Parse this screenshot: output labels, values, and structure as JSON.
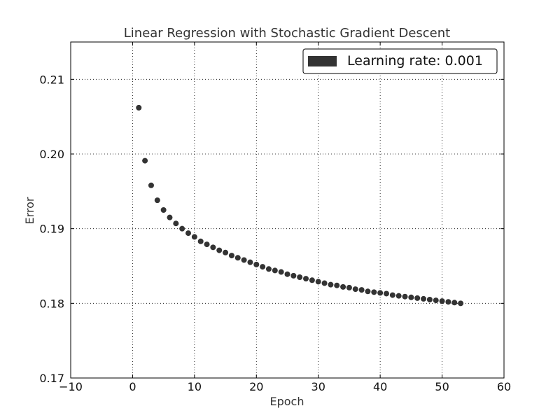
{
  "chart_data": {
    "type": "scatter",
    "title": "Linear Regression with Stochastic Gradient Descent",
    "xlabel": "Epoch",
    "ylabel": "Error",
    "xlim": [
      -10,
      60
    ],
    "ylim": [
      0.17,
      0.215
    ],
    "xticks": [
      -10,
      0,
      10,
      20,
      30,
      40,
      50,
      60
    ],
    "xtick_labels": [
      "−10",
      "0",
      "10",
      "20",
      "30",
      "40",
      "50",
      "60"
    ],
    "yticks": [
      0.17,
      0.18,
      0.19,
      0.2,
      0.21
    ],
    "ytick_labels": [
      "0.17",
      "0.18",
      "0.19",
      "0.20",
      "0.21"
    ],
    "grid": true,
    "legend_position": "top-right",
    "series": [
      {
        "name": "Learning rate: 0.001",
        "color": "#333333",
        "x": [
          1,
          2,
          3,
          4,
          5,
          6,
          7,
          8,
          9,
          10,
          11,
          12,
          13,
          14,
          15,
          16,
          17,
          18,
          19,
          20,
          21,
          22,
          23,
          24,
          25,
          26,
          27,
          28,
          29,
          30,
          31,
          32,
          33,
          34,
          35,
          36,
          37,
          38,
          39,
          40,
          41,
          42,
          43,
          44,
          45,
          46,
          47,
          48,
          49,
          50,
          51,
          52,
          53
        ],
        "y": [
          0.2062,
          0.1991,
          0.1958,
          0.1938,
          0.1925,
          0.1915,
          0.1907,
          0.19,
          0.1894,
          0.1889,
          0.1883,
          0.1879,
          0.1875,
          0.1871,
          0.1868,
          0.1864,
          0.1861,
          0.1858,
          0.1855,
          0.1852,
          0.1849,
          0.1846,
          0.1844,
          0.1842,
          0.1839,
          0.1837,
          0.1835,
          0.1833,
          0.1831,
          0.1829,
          0.1827,
          0.1825,
          0.1824,
          0.1822,
          0.1821,
          0.1819,
          0.1818,
          0.1816,
          0.1815,
          0.1814,
          0.1813,
          0.1811,
          0.181,
          0.1809,
          0.1808,
          0.1807,
          0.1806,
          0.1805,
          0.1804,
          0.1803,
          0.1802,
          0.1801,
          0.18
        ]
      }
    ]
  }
}
